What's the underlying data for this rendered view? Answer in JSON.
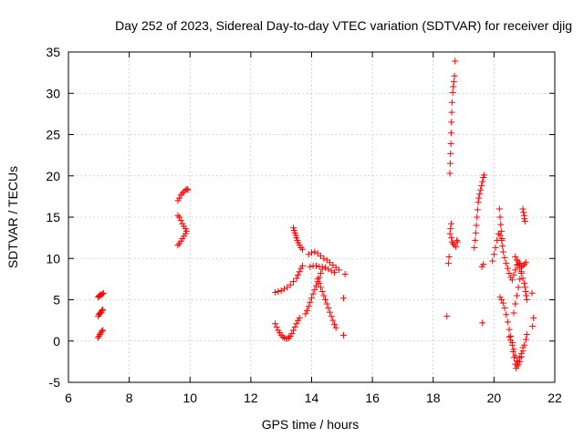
{
  "chart_data": {
    "type": "scatter",
    "title": "Day 252 of 2023, Sidereal Day-to-day VTEC variation (SDTVAR) for receiver djig",
    "xlabel": "GPS time / hours",
    "ylabel": "SDTVAR / TECUs",
    "xlim": [
      6,
      22
    ],
    "ylim": [
      -5,
      35
    ],
    "xticks": [
      6,
      8,
      10,
      12,
      14,
      16,
      18,
      20,
      22
    ],
    "yticks": [
      -5,
      0,
      5,
      10,
      15,
      20,
      25,
      30,
      35
    ],
    "xtick_labels": [
      "6",
      "8",
      "10",
      "12",
      "14",
      "16",
      "18",
      "20",
      "22"
    ],
    "ytick_labels": [
      "-5",
      "0",
      "5",
      "10",
      "15",
      "20",
      "25",
      "30",
      "35"
    ],
    "grid": true,
    "marker": "+",
    "color": "#ff0000",
    "series": [
      {
        "name": "s01",
        "points": [
          [
            6.98,
            5.3
          ],
          [
            7.0,
            5.4
          ],
          [
            7.02,
            5.5
          ],
          [
            7.05,
            5.6
          ],
          [
            7.08,
            5.6
          ],
          [
            7.12,
            5.7
          ],
          [
            7.15,
            5.8
          ]
        ]
      },
      {
        "name": "s02",
        "points": [
          [
            6.98,
            3.0
          ],
          [
            7.0,
            3.2
          ],
          [
            7.02,
            3.3
          ],
          [
            7.05,
            3.4
          ],
          [
            7.08,
            3.5
          ],
          [
            7.1,
            3.7
          ],
          [
            7.13,
            3.8
          ]
        ]
      },
      {
        "name": "s03",
        "points": [
          [
            6.97,
            0.4
          ],
          [
            7.0,
            0.6
          ],
          [
            7.03,
            0.8
          ],
          [
            7.06,
            1.0
          ],
          [
            7.1,
            1.2
          ],
          [
            7.13,
            1.3
          ]
        ]
      },
      {
        "name": "s04",
        "points": [
          [
            9.6,
            17.0
          ],
          [
            9.65,
            17.3
          ],
          [
            9.7,
            17.7
          ],
          [
            9.75,
            17.9
          ],
          [
            9.8,
            18.1
          ],
          [
            9.85,
            18.3
          ],
          [
            9.9,
            18.4
          ],
          [
            9.93,
            18.3
          ]
        ]
      },
      {
        "name": "s05",
        "points": [
          [
            9.6,
            15.2
          ],
          [
            9.65,
            15.0
          ],
          [
            9.7,
            14.6
          ],
          [
            9.75,
            14.2
          ],
          [
            9.8,
            13.9
          ],
          [
            9.85,
            13.6
          ],
          [
            9.88,
            13.3
          ],
          [
            9.85,
            13.0
          ],
          [
            9.8,
            12.7
          ],
          [
            9.75,
            12.4
          ],
          [
            9.7,
            12.1
          ],
          [
            9.65,
            11.8
          ],
          [
            9.6,
            11.6
          ]
        ]
      },
      {
        "name": "s06",
        "points": [
          [
            12.8,
            5.9
          ],
          [
            12.9,
            6.0
          ],
          [
            13.0,
            6.1
          ],
          [
            13.1,
            6.3
          ],
          [
            13.2,
            6.5
          ],
          [
            13.3,
            6.8
          ],
          [
            13.4,
            7.2
          ],
          [
            13.5,
            7.6
          ],
          [
            13.55,
            8.0
          ],
          [
            13.6,
            8.4
          ],
          [
            13.65,
            8.8
          ],
          [
            13.7,
            9.1
          ]
        ]
      },
      {
        "name": "s07",
        "points": [
          [
            12.8,
            2.1
          ],
          [
            12.85,
            1.7
          ],
          [
            12.9,
            1.3
          ],
          [
            12.95,
            1.0
          ],
          [
            13.0,
            0.7
          ],
          [
            13.05,
            0.5
          ],
          [
            13.1,
            0.4
          ],
          [
            13.15,
            0.3
          ],
          [
            13.2,
            0.3
          ],
          [
            13.25,
            0.4
          ],
          [
            13.3,
            0.6
          ],
          [
            13.35,
            0.9
          ],
          [
            13.4,
            1.3
          ],
          [
            13.45,
            1.7
          ],
          [
            13.5,
            2.1
          ],
          [
            13.55,
            2.5
          ],
          [
            13.6,
            2.8
          ]
        ]
      },
      {
        "name": "s08",
        "points": [
          [
            13.4,
            13.7
          ],
          [
            13.42,
            13.4
          ],
          [
            13.45,
            13.1
          ],
          [
            13.48,
            12.8
          ],
          [
            13.5,
            12.5
          ],
          [
            13.53,
            12.2
          ],
          [
            13.56,
            11.9
          ],
          [
            13.6,
            11.6
          ],
          [
            13.65,
            11.3
          ],
          [
            13.7,
            11.1
          ]
        ]
      },
      {
        "name": "s09",
        "points": [
          [
            13.9,
            10.5
          ],
          [
            14.0,
            10.7
          ],
          [
            14.1,
            10.8
          ],
          [
            14.2,
            10.6
          ],
          [
            14.3,
            10.3
          ],
          [
            14.4,
            10.0
          ],
          [
            14.5,
            9.8
          ],
          [
            14.6,
            9.5
          ],
          [
            14.7,
            9.2
          ],
          [
            14.8,
            8.9
          ],
          [
            14.9,
            8.6
          ]
        ]
      },
      {
        "name": "s10",
        "points": [
          [
            13.8,
            3.3
          ],
          [
            13.85,
            3.7
          ],
          [
            13.9,
            4.2
          ],
          [
            13.95,
            4.7
          ],
          [
            14.0,
            5.2
          ],
          [
            14.05,
            5.7
          ],
          [
            14.1,
            6.2
          ],
          [
            14.15,
            6.7
          ],
          [
            14.2,
            7.2
          ],
          [
            14.25,
            7.7
          ],
          [
            14.3,
            8.2
          ],
          [
            14.35,
            8.7
          ]
        ]
      },
      {
        "name": "s11",
        "points": [
          [
            14.2,
            7.5
          ],
          [
            14.25,
            7.0
          ],
          [
            14.3,
            6.5
          ],
          [
            14.35,
            6.0
          ],
          [
            14.4,
            5.5
          ],
          [
            14.45,
            5.0
          ],
          [
            14.5,
            4.5
          ],
          [
            14.55,
            4.0
          ],
          [
            14.6,
            3.5
          ],
          [
            14.65,
            3.0
          ],
          [
            14.7,
            2.5
          ],
          [
            14.75,
            2.0
          ],
          [
            14.8,
            1.6
          ]
        ]
      },
      {
        "name": "s12",
        "points": [
          [
            13.95,
            9.0
          ],
          [
            14.05,
            9.1
          ],
          [
            14.15,
            9.1
          ],
          [
            14.25,
            9.0
          ],
          [
            14.35,
            9.0
          ],
          [
            14.45,
            8.9
          ],
          [
            14.55,
            8.7
          ],
          [
            14.65,
            8.5
          ],
          [
            14.75,
            8.3
          ]
        ]
      },
      {
        "name": "s13",
        "points": [
          [
            15.1,
            8.1
          ],
          [
            15.05,
            5.2
          ],
          [
            15.05,
            0.7
          ]
        ]
      },
      {
        "name": "s14",
        "points": [
          [
            18.55,
            20.3
          ],
          [
            18.56,
            21.5
          ],
          [
            18.57,
            22.7
          ],
          [
            18.58,
            23.9
          ],
          [
            18.59,
            25.2
          ],
          [
            18.6,
            26.5
          ],
          [
            18.61,
            27.7
          ],
          [
            18.62,
            28.9
          ],
          [
            18.64,
            30.1
          ],
          [
            18.66,
            30.8
          ],
          [
            18.68,
            31.4
          ],
          [
            18.7,
            32.1
          ],
          [
            18.72,
            33.9
          ]
        ]
      },
      {
        "name": "s15",
        "points": [
          [
            18.5,
            9.4
          ],
          [
            18.52,
            10.2
          ],
          [
            18.55,
            13.0
          ],
          [
            18.57,
            13.6
          ],
          [
            18.59,
            14.2
          ],
          [
            18.6,
            12.5
          ],
          [
            18.62,
            12.0
          ],
          [
            18.65,
            11.8
          ],
          [
            18.7,
            11.6
          ],
          [
            18.75,
            11.4
          ],
          [
            18.78,
            12.2
          ],
          [
            18.8,
            12.0
          ]
        ]
      },
      {
        "name": "s16",
        "points": [
          [
            18.45,
            3.0
          ]
        ]
      },
      {
        "name": "s17",
        "points": [
          [
            19.35,
            11.3
          ],
          [
            19.38,
            12.2
          ],
          [
            19.4,
            13.1
          ],
          [
            19.42,
            14.0
          ],
          [
            19.44,
            15.0
          ],
          [
            19.46,
            15.9
          ],
          [
            19.48,
            16.8
          ],
          [
            19.5,
            17.3
          ],
          [
            19.53,
            17.8
          ],
          [
            19.56,
            18.3
          ],
          [
            19.59,
            18.8
          ],
          [
            19.62,
            19.3
          ],
          [
            19.65,
            19.8
          ],
          [
            19.67,
            20.1
          ]
        ]
      },
      {
        "name": "s18",
        "points": [
          [
            19.6,
            9.0
          ],
          [
            19.65,
            9.3
          ],
          [
            19.62,
            2.2
          ]
        ]
      },
      {
        "name": "s19",
        "points": [
          [
            19.95,
            9.7
          ],
          [
            20.0,
            10.5
          ],
          [
            20.05,
            11.3
          ],
          [
            20.1,
            12.2
          ],
          [
            20.15,
            13.0
          ],
          [
            20.2,
            12.8
          ],
          [
            20.25,
            12.2
          ],
          [
            20.28,
            11.5
          ],
          [
            20.3,
            10.8
          ],
          [
            20.35,
            10.1
          ],
          [
            20.4,
            9.4
          ],
          [
            20.45,
            8.8
          ],
          [
            20.5,
            8.2
          ],
          [
            20.55,
            7.7
          ],
          [
            20.6,
            7.4
          ],
          [
            20.65,
            8.0
          ],
          [
            20.7,
            8.6
          ],
          [
            20.75,
            9.2
          ],
          [
            20.8,
            9.6
          ],
          [
            20.85,
            9.4
          ],
          [
            20.9,
            9.0
          ]
        ]
      },
      {
        "name": "s20",
        "points": [
          [
            20.18,
            16.0
          ],
          [
            20.2,
            15.0
          ],
          [
            20.22,
            14.1
          ],
          [
            20.24,
            13.3
          ],
          [
            20.26,
            12.4
          ]
        ]
      },
      {
        "name": "s21",
        "points": [
          [
            20.2,
            5.3
          ],
          [
            20.25,
            5.0
          ],
          [
            20.3,
            4.6
          ],
          [
            20.35,
            4.0
          ],
          [
            20.4,
            3.2
          ],
          [
            20.45,
            2.3
          ],
          [
            20.5,
            1.4
          ],
          [
            20.55,
            0.6
          ],
          [
            20.6,
            -0.2
          ],
          [
            20.65,
            -1.0
          ],
          [
            20.7,
            -1.8
          ],
          [
            20.75,
            -2.4
          ],
          [
            20.8,
            -2.8
          ],
          [
            20.85,
            -2.5
          ],
          [
            20.9,
            -1.9
          ],
          [
            20.95,
            -1.2
          ],
          [
            21.0,
            -0.5
          ],
          [
            21.05,
            0.2
          ],
          [
            21.08,
            0.8
          ]
        ]
      },
      {
        "name": "s22",
        "points": [
          [
            20.5,
            0.5
          ],
          [
            20.55,
            0.1
          ],
          [
            20.6,
            -0.5
          ],
          [
            20.63,
            -1.3
          ],
          [
            20.66,
            -2.0
          ],
          [
            20.7,
            -2.8
          ],
          [
            20.73,
            -3.3
          ],
          [
            20.77,
            -3.0
          ],
          [
            20.8,
            -2.5
          ],
          [
            20.85,
            -2.0
          ],
          [
            20.9,
            -1.5
          ],
          [
            20.95,
            -0.8
          ]
        ]
      },
      {
        "name": "s23",
        "points": [
          [
            20.65,
            3.4
          ],
          [
            20.7,
            4.5
          ],
          [
            20.75,
            5.5
          ],
          [
            20.8,
            6.5
          ],
          [
            20.85,
            7.5
          ],
          [
            20.9,
            8.4
          ],
          [
            20.95,
            9.1
          ],
          [
            21.0,
            9.3
          ],
          [
            21.05,
            9.5
          ]
        ]
      },
      {
        "name": "s24",
        "points": [
          [
            20.7,
            10.2
          ],
          [
            20.75,
            9.8
          ],
          [
            20.8,
            9.3
          ],
          [
            20.85,
            8.8
          ],
          [
            20.9,
            8.2
          ],
          [
            20.95,
            7.6
          ],
          [
            21.0,
            7.0
          ],
          [
            21.02,
            6.5
          ],
          [
            21.04,
            6.0
          ],
          [
            21.06,
            5.5
          ],
          [
            21.08,
            5.0
          ]
        ]
      },
      {
        "name": "s25",
        "points": [
          [
            20.95,
            16.0
          ],
          [
            20.97,
            15.6
          ],
          [
            20.99,
            15.2
          ],
          [
            21.0,
            14.8
          ],
          [
            21.02,
            14.5
          ]
        ]
      },
      {
        "name": "s26",
        "points": [
          [
            21.25,
            5.8
          ],
          [
            21.3,
            2.8
          ],
          [
            21.27,
            1.8
          ]
        ]
      }
    ]
  }
}
